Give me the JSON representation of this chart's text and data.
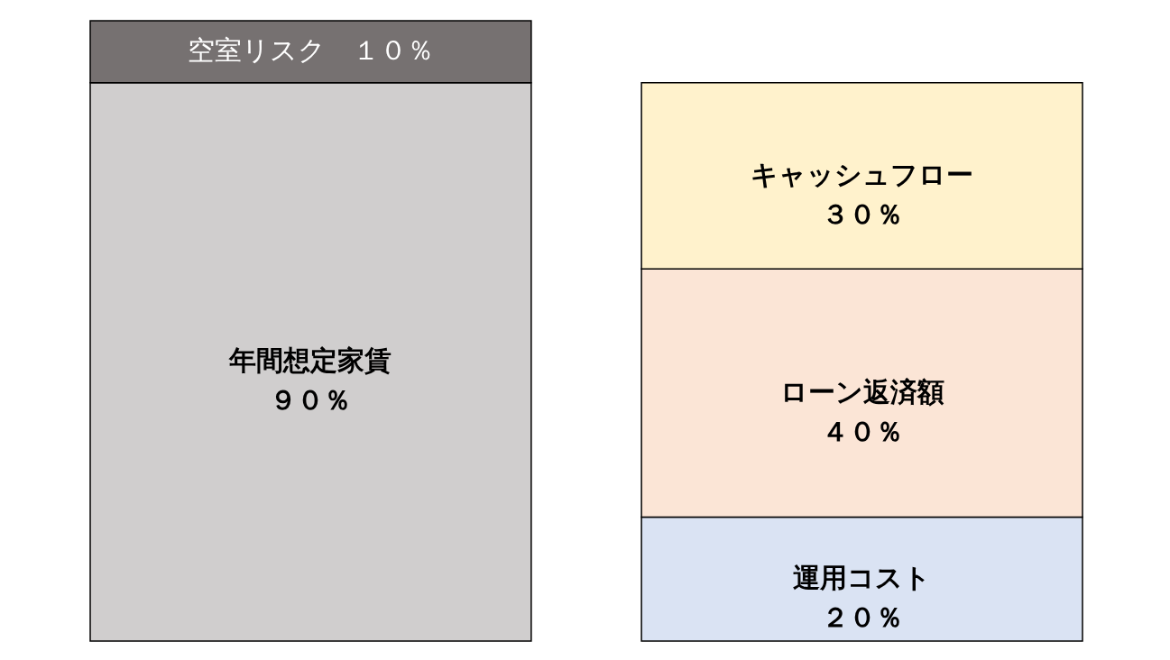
{
  "chart_data": {
    "type": "bar",
    "stacked": true,
    "categories": [
      null,
      null
    ],
    "tick_labels": false,
    "legend": false,
    "series": [
      {
        "name": "年間想定家賃",
        "color": "#d0cece",
        "values": [
          90,
          null
        ],
        "value_labels": [
          "９０％",
          null
        ]
      },
      {
        "name": "空室リスク",
        "color": "#767171",
        "values": [
          10,
          null
        ],
        "value_labels": [
          "１０％",
          null
        ]
      },
      {
        "name": "運用コスト",
        "color": "#dae3f3",
        "values": [
          null,
          20
        ],
        "value_labels": [
          null,
          "２０％"
        ]
      },
      {
        "name": "ローン返済額",
        "color": "#fbe5d6",
        "values": [
          null,
          40
        ],
        "value_labels": [
          null,
          "４０％"
        ]
      },
      {
        "name": "キャッシュフロー",
        "color": "#fff2cc",
        "values": [
          null,
          30
        ],
        "value_labels": [
          null,
          "３０％"
        ]
      }
    ]
  }
}
